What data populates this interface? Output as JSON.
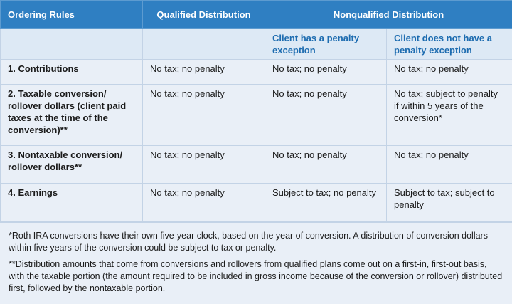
{
  "table": {
    "header": [
      "Ordering Rules",
      "Qualified Distribution",
      "Nonqualified Distribution"
    ],
    "subheader": [
      "Client has a penalty exception",
      "Client does not have a penalty exception"
    ],
    "rows": [
      [
        "1. Contributions",
        "No tax; no penalty",
        "No tax; no penalty",
        "No tax; no penalty"
      ],
      [
        "2. Taxable conversion/ rollover dollars (client paid taxes at the time of the conversion)**",
        "No tax; no penalty",
        "No tax; no penalty",
        "No tax; subject to penalty if within 5 years of the conversion*"
      ],
      [
        "3. Nontaxable conversion/ rollover dollars**",
        "No tax; no penalty",
        "No tax; no penalty",
        "No tax; no penalty"
      ],
      [
        "4. Earnings",
        "No tax; no penalty",
        "Subject to tax; no penalty",
        "Subject to tax; subject to penalty"
      ]
    ]
  },
  "footnotes": [
    "*Roth IRA conversions have their own five-year clock, based on the year of conversion. A distribution of conversion dollars within five years of the conversion could be subject to tax or penalty.",
    "**Distribution amounts that come from conversions and rollovers from qualified plans come out on a first-in, first-out basis, with the taxable portion (the amount required to be included in gross income because of the conversion or rollover) distributed first, followed by the nontaxable portion."
  ]
}
